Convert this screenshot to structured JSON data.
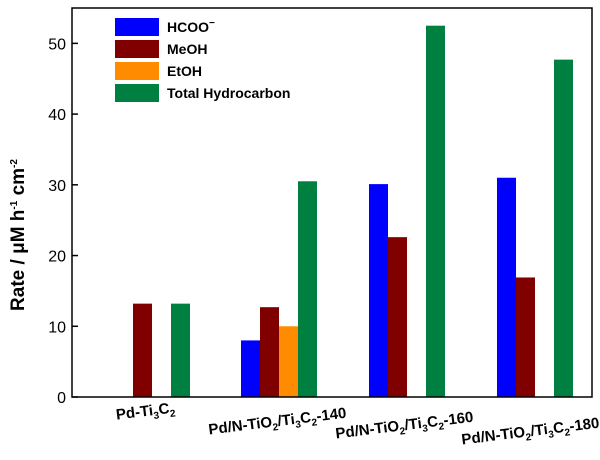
{
  "chart_data": {
    "type": "bar",
    "categories": [
      {
        "base": "Pd-Ti",
        "sub1": "3",
        "mid": "C",
        "sub2": "2",
        "tail": ""
      },
      {
        "base": "Pd/N-TiO",
        "sub0": "2",
        "mid0": "/Ti",
        "sub1": "3",
        "mid": "C",
        "sub2": "2",
        "tail": "-140"
      },
      {
        "base": "Pd/N-TiO",
        "sub0": "2",
        "mid0": "/Ti",
        "sub1": "3",
        "mid": "C",
        "sub2": "2",
        "tail": "-160"
      },
      {
        "base": "Pd/N-TiO",
        "sub0": "2",
        "mid0": "/Ti",
        "sub1": "3",
        "mid": "C",
        "sub2": "2",
        "tail": "-180"
      }
    ],
    "series": [
      {
        "name": "HCOO",
        "name_sup": "−",
        "color": "#0000ff",
        "values": [
          0,
          8.0,
          30.1,
          31.0
        ]
      },
      {
        "name": "MeOH",
        "color": "#800000",
        "values": [
          13.2,
          12.7,
          22.6,
          16.9
        ]
      },
      {
        "name": "EtOH",
        "color": "#ff8c00",
        "values": [
          0,
          10.0,
          0,
          0
        ]
      },
      {
        "name": "Total Hydrocarbon",
        "color": "#008040",
        "values": [
          13.2,
          30.5,
          52.5,
          47.7
        ]
      }
    ],
    "ylabel": {
      "main": "Rate / μM h",
      "sup1": "-1",
      "mid": " cm",
      "sup2": "-2"
    },
    "ylim": [
      0,
      55
    ],
    "yticks": [
      0,
      10,
      20,
      30,
      40,
      50
    ],
    "legend": "top-left",
    "grid": false
  }
}
